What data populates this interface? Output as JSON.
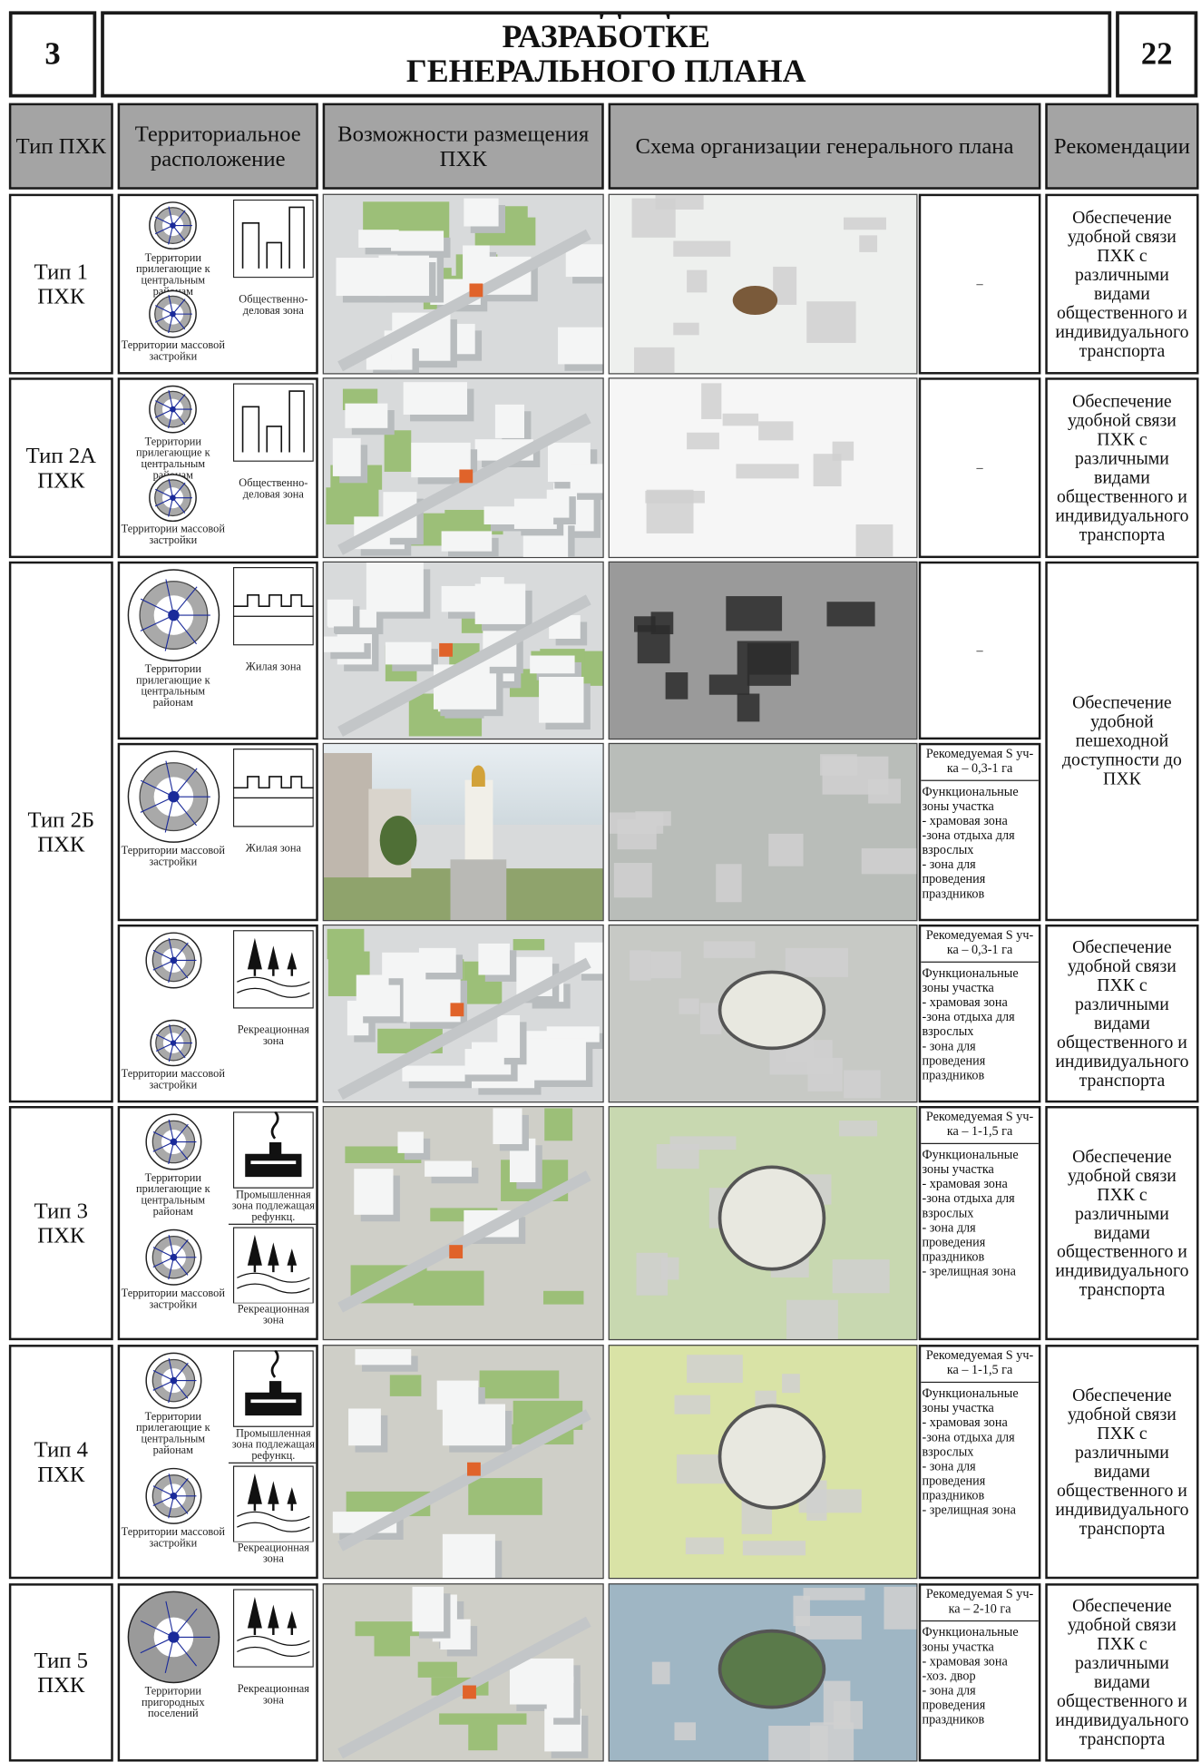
{
  "header": {
    "left_number": "3",
    "title": "РЕКОМЕНДАЦИИ ПО РАЗРАБОТКЕ ГЕНЕРАЛЬНОГО ПЛАНА ПХК",
    "right_number": "22"
  },
  "table": {
    "columns": [
      "Тип ПХК",
      "Территориальное расположение",
      "Возможности размещения ПХК",
      "Схема организации генерального плана",
      "Рекомендации"
    ],
    "rows": [
      {
        "type": "Тип 1 ПХК",
        "cells": [
          {
            "locations": [
              "Территории прилегающие к центральным районам",
              "Территории массовой застройки"
            ],
            "zones": [
              "Общественно-деловая зона"
            ],
            "note": "–"
          }
        ],
        "recommendations": [
          "Обеспечение удобной связи ПХК с различными видами общественного и индивидуального транспорта"
        ]
      },
      {
        "type": "Тип 2А ПХК",
        "cells": [
          {
            "locations": [
              "Территории прилегающие к центральным районам",
              "Территории массовой застройки"
            ],
            "zones": [
              "Общественно-деловая зона"
            ],
            "note": "–"
          }
        ],
        "recommendations": [
          "Обеспечение удобной связи ПХК с различными видами общественного и индивидуального транспорта"
        ]
      },
      {
        "type": "Тип 2Б ПХК",
        "cells": [
          {
            "locations": [
              "Территории прилегающие к центральным районам"
            ],
            "zones": [
              "Жилая зона"
            ],
            "note": "–"
          },
          {
            "locations": [
              "Территории массовой застройки"
            ],
            "zones": [
              "Жилая зона"
            ],
            "note": {
              "area": "Рекомедуемая S уч-ка – 0,3-1 га",
              "functions": [
                "Функциональные зоны участка",
                "- храмовая зона",
                "-зона отдыха для взрослых",
                "- зона для проведения праздников"
              ]
            }
          },
          {
            "locations": [
              null,
              "Территории массовой застройки"
            ],
            "zones": [
              "Рекреационная зона"
            ],
            "note": {
              "area": "Рекомедуемая S уч-ка – 0,3-1 га",
              "functions": [
                "Функциональные зоны участка",
                "- храмовая зона",
                "-зона отдыха для взрослых",
                "- зона для проведения праздников"
              ]
            }
          }
        ],
        "recommendations": [
          "Обеспечение удобной пешеходной доступности до ПХК",
          "Обеспечение удобной связи ПХК с различными видами общественного и индивидуального транспорта"
        ]
      },
      {
        "type": "Тип 3 ПХК",
        "cells": [
          {
            "locations": [
              "Территории прилегающие к центральным районам",
              "Территории массовой застройки"
            ],
            "zones": [
              "Промышленная зона подлежащая рефункц.",
              "Рекреационная зона"
            ],
            "note": {
              "area": "Рекомедуемая S уч-ка – 1-1,5 га",
              "functions": [
                "Функциональные зоны участка",
                "- храмовая зона",
                "-зона отдыха для взрослых",
                "- зона для проведения праздников",
                "- зрелищная зона"
              ]
            }
          }
        ],
        "recommendations": [
          "Обеспечение удобной связи ПХК с различными видами общественного и индивидуального транспорта"
        ]
      },
      {
        "type": "Тип 4 ПХК",
        "cells": [
          {
            "locations": [
              "Территории прилегающие к центральным районам",
              "Территории массовой застройки"
            ],
            "zones": [
              "Промышленная зона подлежащая рефункц.",
              "Рекреационная зона"
            ],
            "note": {
              "area": "Рекомедуемая S уч-ка – 1-1,5 га",
              "functions": [
                "Функциональные зоны участка",
                "- храмовая зона",
                "-зона отдыха для взрослых",
                "- зона для проведения праздников",
                "- зрелищная зона"
              ]
            }
          }
        ],
        "recommendations": [
          "Обеспечение удобной связи ПХК с различными видами общественного и индивидуального транспорта"
        ]
      },
      {
        "type": "Тип 5 ПХК",
        "cells": [
          {
            "locations": [
              "Территории пригородных поселений"
            ],
            "zones": [
              "Рекреационная зона"
            ],
            "note": {
              "area": "Рекомедуемая S уч-ка – 2-10 га",
              "functions": [
                "Функциональные зоны участка",
                "- храмовая зона",
                "-хоз. двор",
                "- зона для проведения праздников"
              ]
            }
          }
        ],
        "recommendations": [
          "Обеспечение удобной связи ПХК с различными видами общественного и индивидуального транспорта"
        ]
      }
    ]
  }
}
